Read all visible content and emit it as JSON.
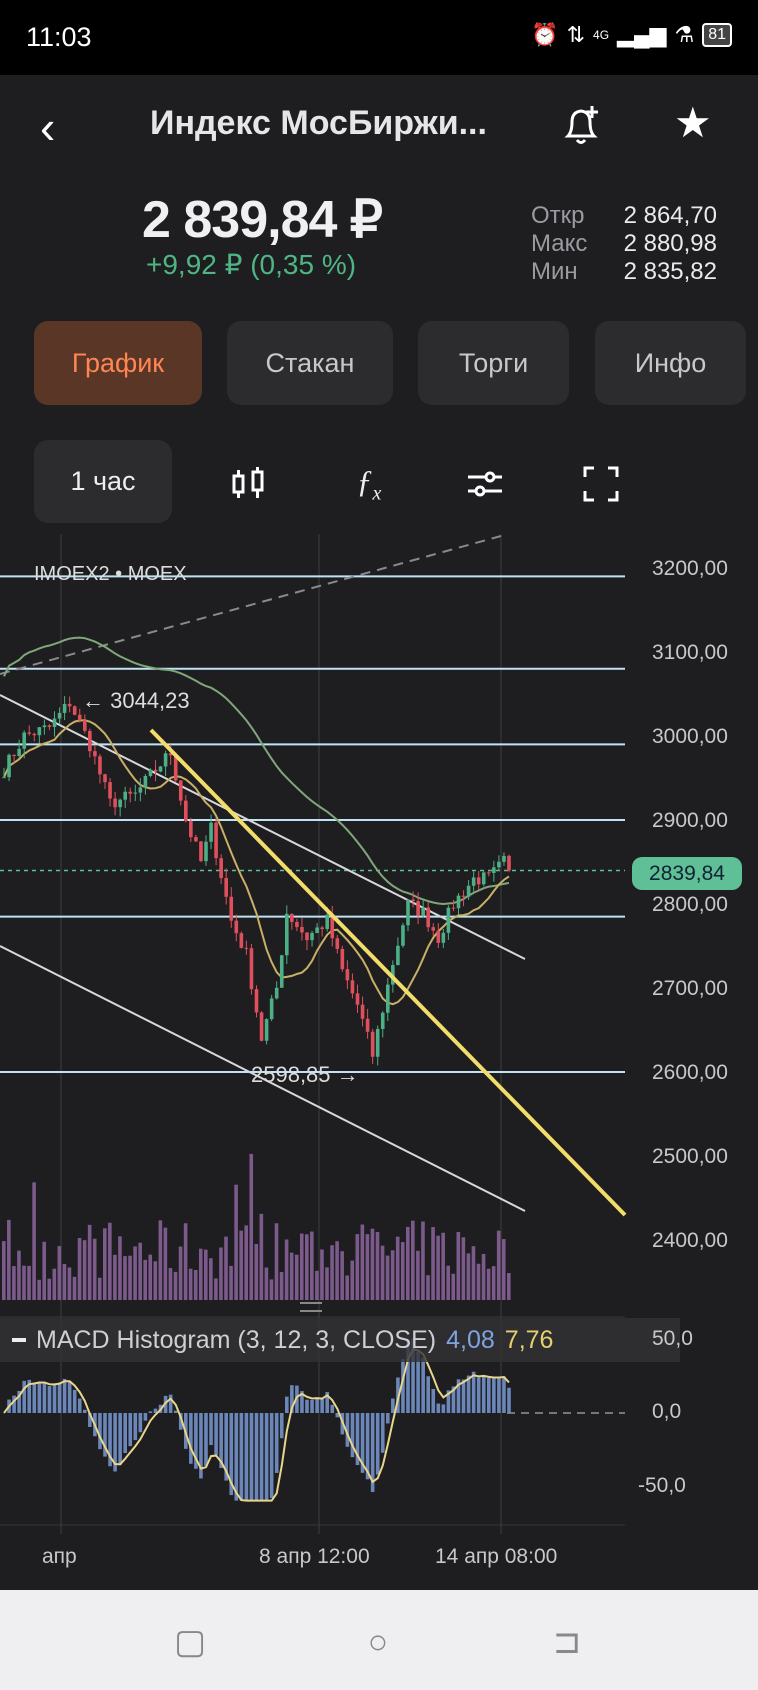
{
  "status": {
    "time": "11:03",
    "network": "4G",
    "battery": "81"
  },
  "header": {
    "title": "Индекс МосБиржи...",
    "back": "chevron-left-icon",
    "alert": "bell-plus-icon",
    "favorite": "star-icon"
  },
  "quote": {
    "price": "2 839,84 ₽",
    "change": "+9,92 ₽ (0,35 %)",
    "open_label": "Откр",
    "open": "2 864,70",
    "high_label": "Макс",
    "high": "2 880,98",
    "low_label": "Мин",
    "low": "2 835,82"
  },
  "tabs": [
    {
      "label": "График",
      "active": true
    },
    {
      "label": "Стакан"
    },
    {
      "label": "Торги"
    },
    {
      "label": "Инфо"
    }
  ],
  "toolbar": {
    "interval": "1 час"
  },
  "chart_data": {
    "type": "candlestick",
    "symbol": "IMOEX2 • MOEX",
    "y_ticks": [
      "3200,00",
      "3100,00",
      "3000,00",
      "2900,00",
      "2800,00",
      "2700,00",
      "2600,00",
      "2500,00",
      "2400,00"
    ],
    "ylim": [
      2360,
      3240
    ],
    "last_price": "2839,84",
    "annotations": {
      "high": "← 3044,23",
      "low": "2598,85 →"
    },
    "levels": [
      3190,
      3080,
      2990,
      2900,
      2785,
      2600
    ],
    "price_path": [
      [
        0,
        2960
      ],
      [
        4,
        3000
      ],
      [
        9,
        3010
      ],
      [
        13,
        3040
      ],
      [
        17,
        2990
      ],
      [
        21,
        2920
      ],
      [
        26,
        2930
      ],
      [
        30,
        2960
      ],
      [
        33,
        2980
      ],
      [
        36,
        2900
      ],
      [
        39,
        2850
      ],
      [
        41,
        2890
      ],
      [
        45,
        2780
      ],
      [
        48,
        2740
      ],
      [
        51,
        2640
      ],
      [
        54,
        2700
      ],
      [
        56,
        2790
      ],
      [
        60,
        2760
      ],
      [
        64,
        2780
      ],
      [
        67,
        2720
      ],
      [
        70,
        2680
      ],
      [
        73,
        2620
      ],
      [
        77,
        2730
      ],
      [
        80,
        2800
      ],
      [
        83,
        2790
      ],
      [
        86,
        2760
      ],
      [
        89,
        2800
      ],
      [
        93,
        2830
      ],
      [
        96,
        2830
      ],
      [
        99,
        2850
      ],
      [
        100,
        2840
      ]
    ],
    "x_labels": [
      "апр",
      "8 апр 12:00",
      "14 апр 08:00"
    ],
    "macd": {
      "label": "MACD Histogram (3, 12, 3, CLOSE)",
      "value1": "4,08",
      "value2": "7,76",
      "y_ticks": [
        "50,0",
        "0,0",
        "-50,0"
      ]
    }
  },
  "colors": {
    "up": "#4caf86",
    "down": "#e0505c",
    "level": "#bfe3f5",
    "trend_yellow": "#f3dd6a",
    "ma_green": "#7fa878",
    "ma_tan": "#c9b066",
    "volume": "#7c5a8c",
    "macd_bar": "#6b86b8",
    "macd_line": "#e8d68a"
  }
}
